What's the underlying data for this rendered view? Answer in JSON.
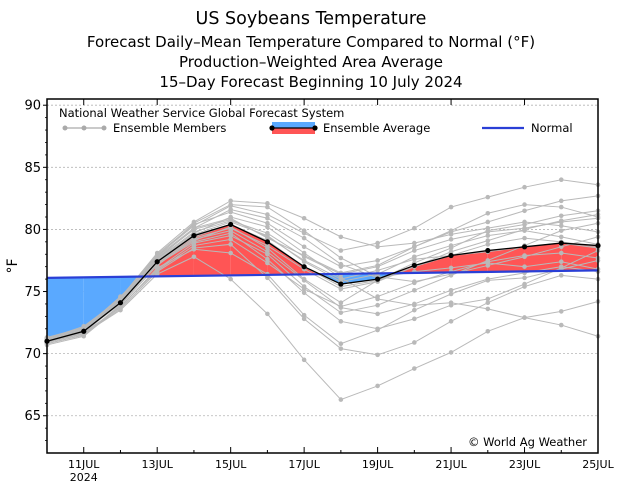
{
  "chart_data": {
    "type": "line",
    "title_lines": [
      "US Soybeans Temperature",
      "Forecast Daily–Mean Temperature Compared to Normal (°F)",
      "Production–Weighted Area Average",
      "15–Day Forecast Beginning 10 July 2024"
    ],
    "ylabel": "°F",
    "ylim": [
      62,
      90.5
    ],
    "yticks": [
      65,
      70,
      75,
      80,
      85,
      90
    ],
    "xlim": [
      0,
      15
    ],
    "xticks": [
      {
        "x": 1,
        "label": "11JUL",
        "sub": "2024"
      },
      {
        "x": 3,
        "label": "13JUL"
      },
      {
        "x": 5,
        "label": "15JUL"
      },
      {
        "x": 7,
        "label": "17JUL"
      },
      {
        "x": 9,
        "label": "19JUL"
      },
      {
        "x": 11,
        "label": "21JUL"
      },
      {
        "x": 13,
        "label": "23JUL"
      },
      {
        "x": 15,
        "label": "25JUL"
      }
    ],
    "legend": {
      "source": "National Weather Service Global Forecast System",
      "members": "Ensemble Members",
      "average": "Ensemble Average",
      "normal": "Normal"
    },
    "credit": "© World Ag Weather",
    "normal": {
      "x": [
        0,
        15
      ],
      "values": [
        76.1,
        76.7
      ]
    },
    "average": {
      "x": [
        0,
        1,
        2,
        3,
        4,
        5,
        6,
        7,
        8,
        9,
        10,
        11,
        12,
        13,
        14,
        15
      ],
      "values": [
        71.0,
        71.8,
        74.1,
        77.4,
        79.5,
        80.4,
        79.0,
        77.0,
        75.6,
        76.0,
        77.1,
        77.9,
        78.3,
        78.6,
        78.9,
        78.7
      ]
    },
    "members": [
      [
        71.0,
        71.6,
        73.5,
        76.4,
        77.8,
        76.0,
        73.2,
        69.5,
        66.3,
        67.4,
        68.8,
        70.1,
        71.8,
        72.9,
        73.4,
        74.2
      ],
      [
        71.2,
        71.9,
        74.2,
        77.3,
        79.1,
        80.2,
        78.5,
        76.0,
        74.1,
        75.9,
        77.3,
        78.5,
        79.9,
        80.4,
        81.1,
        81.5
      ],
      [
        70.8,
        71.5,
        73.9,
        77.8,
        80.1,
        81.6,
        80.9,
        79.3,
        77.2,
        76.1,
        76.6,
        76.9,
        77.3,
        77.0,
        77.4,
        76.8
      ],
      [
        71.1,
        72.1,
        74.5,
        78.1,
        80.6,
        82.3,
        82.1,
        80.9,
        79.4,
        78.6,
        78.9,
        79.6,
        80.1,
        80.6,
        80.3,
        79.8
      ],
      [
        70.9,
        71.7,
        73.7,
        76.9,
        78.4,
        78.1,
        76.4,
        73.1,
        70.8,
        71.9,
        73.5,
        74.8,
        75.9,
        76.1,
        76.8,
        77.5
      ],
      [
        71.3,
        72.0,
        74.6,
        77.6,
        80.1,
        80.9,
        79.3,
        77.9,
        76.5,
        77.1,
        78.6,
        79.9,
        81.3,
        82.0,
        81.8,
        81.0
      ],
      [
        71.0,
        71.8,
        74.0,
        77.5,
        79.7,
        81.0,
        80.2,
        78.1,
        76.1,
        74.4,
        73.9,
        74.1,
        73.6,
        72.9,
        72.3,
        71.4
      ],
      [
        70.7,
        71.4,
        73.8,
        76.8,
        78.9,
        79.5,
        78.0,
        75.4,
        73.3,
        73.9,
        75.1,
        76.3,
        77.5,
        78.7,
        79.9,
        80.5
      ],
      [
        71.2,
        72.2,
        74.4,
        77.9,
        80.3,
        81.9,
        81.2,
        79.7,
        78.3,
        78.9,
        80.1,
        81.8,
        82.6,
        83.4,
        84.0,
        83.6
      ],
      [
        71.0,
        71.7,
        74.1,
        77.2,
        79.0,
        79.7,
        77.6,
        74.9,
        72.6,
        72.0,
        72.8,
        73.9,
        74.4,
        75.6,
        76.9,
        78.3
      ],
      [
        70.9,
        71.9,
        74.3,
        77.7,
        80.0,
        80.8,
        79.4,
        77.5,
        76.0,
        76.7,
        77.6,
        77.9,
        78.8,
        79.3,
        79.0,
        78.6
      ],
      [
        71.1,
        71.6,
        73.6,
        76.6,
        78.5,
        78.8,
        76.1,
        72.8,
        70.4,
        69.9,
        70.9,
        72.6,
        74.1,
        75.4,
        76.3,
        76.0
      ],
      [
        71.0,
        72.0,
        74.4,
        77.8,
        80.5,
        82.0,
        81.8,
        79.9,
        77.7,
        76.2,
        75.8,
        76.4,
        77.1,
        77.8,
        78.6,
        79.4
      ],
      [
        70.8,
        71.5,
        73.9,
        77.1,
        79.3,
        80.1,
        78.7,
        76.8,
        75.2,
        75.8,
        77.0,
        78.2,
        79.1,
        80.0,
        80.7,
        81.2
      ],
      [
        71.2,
        71.8,
        74.2,
        77.4,
        79.6,
        80.6,
        79.5,
        77.4,
        75.8,
        76.4,
        77.8,
        78.7,
        79.5,
        79.9,
        79.4,
        78.8
      ],
      [
        71.0,
        71.9,
        74.0,
        77.3,
        79.4,
        80.4,
        79.1,
        77.0,
        75.4,
        75.9,
        77.0,
        77.9,
        78.2,
        78.6,
        78.9,
        78.5
      ],
      [
        70.9,
        71.6,
        73.8,
        76.7,
        78.7,
        79.2,
        77.3,
        75.2,
        73.8,
        74.6,
        75.7,
        76.6,
        77.4,
        77.9,
        78.1,
        77.7
      ],
      [
        71.3,
        72.1,
        74.5,
        78.0,
        80.4,
        81.4,
        80.5,
        78.6,
        77.0,
        77.5,
        78.6,
        79.8,
        80.6,
        81.5,
        82.3,
        82.7
      ],
      [
        71.0,
        71.7,
        74.1,
        77.4,
        79.2,
        79.9,
        78.2,
        75.9,
        73.7,
        73.2,
        74.0,
        75.1,
        76.0,
        76.5,
        77.0,
        76.6
      ],
      [
        71.1,
        71.8,
        74.2,
        77.6,
        79.8,
        80.7,
        79.7,
        77.8,
        76.4,
        77.0,
        78.3,
        79.2,
        79.8,
        80.1,
        80.6,
        80.9
      ]
    ]
  }
}
